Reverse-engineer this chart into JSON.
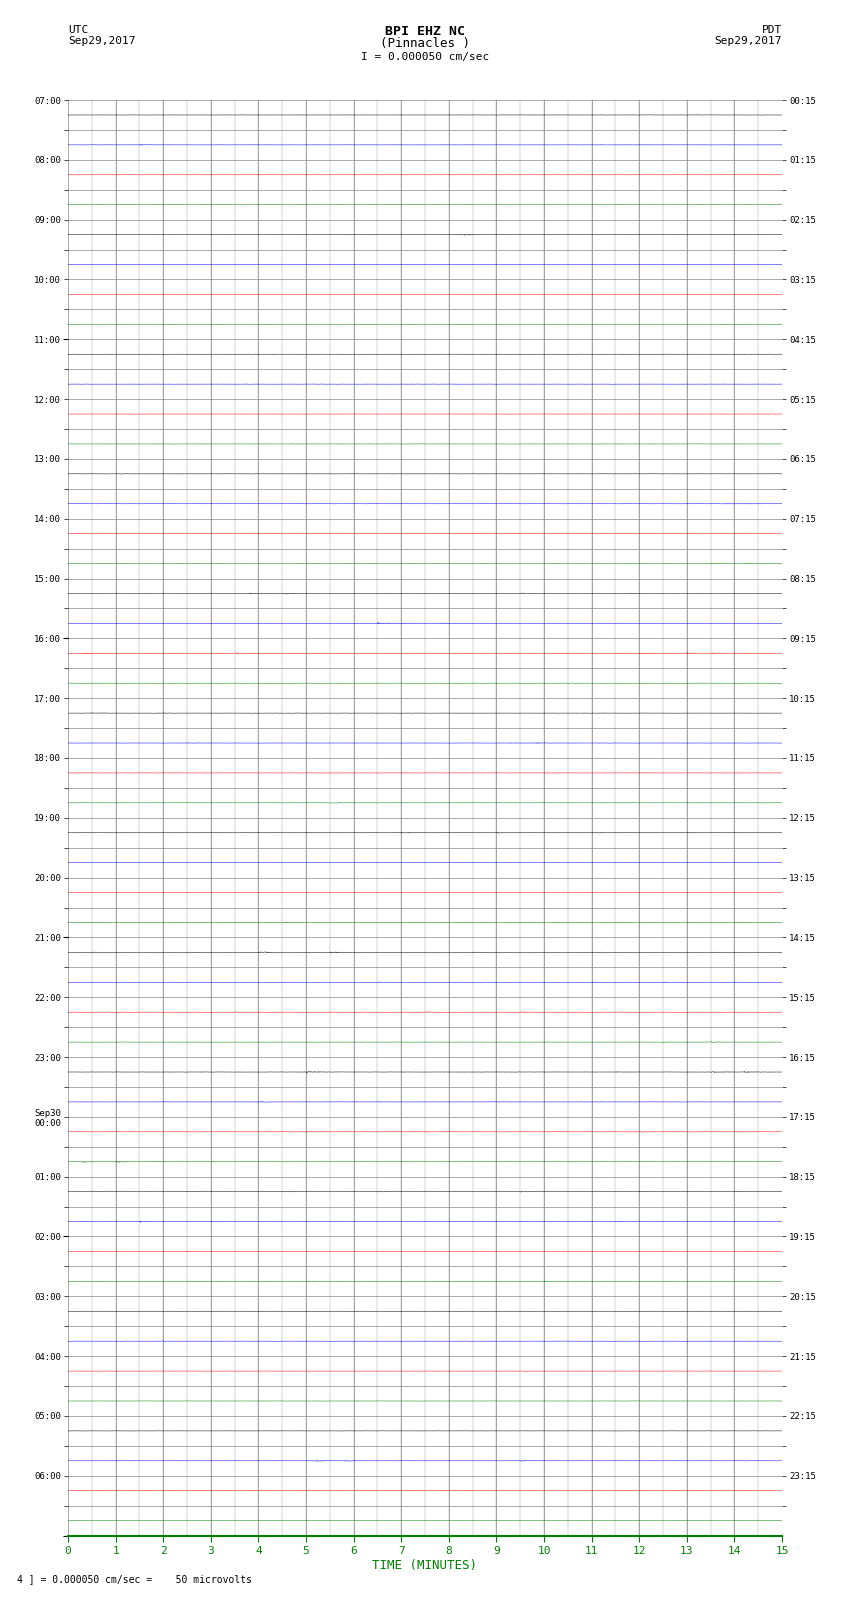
{
  "title_line1": "BPI EHZ NC",
  "title_line2": "(Pinnacles )",
  "scale_text": "I = 0.000050 cm/sec",
  "utc_label": "UTC",
  "utc_date": "Sep29,2017",
  "pdt_label": "PDT",
  "pdt_date": "Sep29,2017",
  "footnote": "4 ] = 0.000050 cm/sec =    50 microvolts",
  "xlabel": "TIME (MINUTES)",
  "left_labels": [
    "07:00",
    "",
    "08:00",
    "",
    "09:00",
    "",
    "10:00",
    "",
    "11:00",
    "",
    "12:00",
    "",
    "13:00",
    "",
    "14:00",
    "",
    "15:00",
    "",
    "16:00",
    "",
    "17:00",
    "",
    "18:00",
    "",
    "19:00",
    "",
    "20:00",
    "",
    "21:00",
    "",
    "22:00",
    "",
    "23:00",
    "",
    "Sep30\n00:00",
    "",
    "01:00",
    "",
    "02:00",
    "",
    "03:00",
    "",
    "04:00",
    "",
    "05:00",
    "",
    "06:00",
    ""
  ],
  "right_labels": [
    "00:15",
    "",
    "01:15",
    "",
    "02:15",
    "",
    "03:15",
    "",
    "04:15",
    "",
    "05:15",
    "",
    "06:15",
    "",
    "07:15",
    "",
    "08:15",
    "",
    "09:15",
    "",
    "10:15",
    "",
    "11:15",
    "",
    "12:15",
    "",
    "13:15",
    "",
    "14:15",
    "",
    "15:15",
    "",
    "16:15",
    "",
    "17:15",
    "",
    "18:15",
    "",
    "19:15",
    "",
    "20:15",
    "",
    "21:15",
    "",
    "22:15",
    "",
    "23:15",
    ""
  ],
  "num_rows": 48,
  "x_min": 0,
  "x_max": 15,
  "background_color": "#ffffff",
  "grid_color": "#888888",
  "trace_colors_cycle": [
    "black",
    "blue",
    "red",
    "green"
  ],
  "base_noise_amp": 0.004,
  "event_noise_amp": 0.06,
  "row_scale": 0.45
}
